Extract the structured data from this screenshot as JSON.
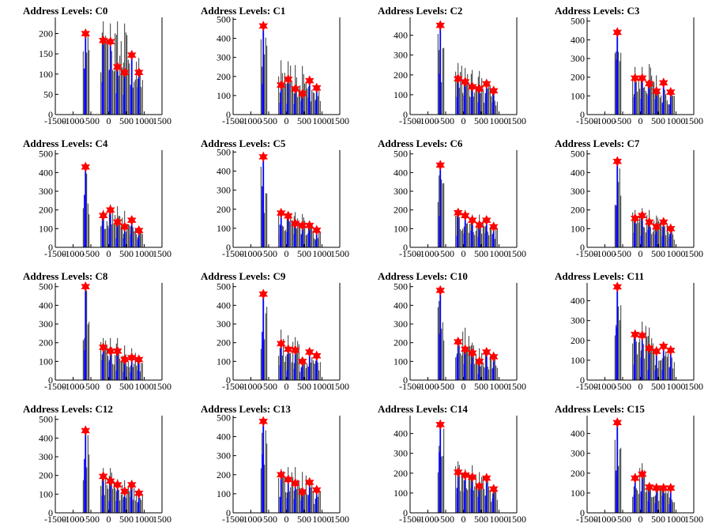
{
  "figure": {
    "layout": {
      "rows": 4,
      "cols": 4
    },
    "colors": {
      "histogram_blue": "#0000ff",
      "histogram_black": "#000000",
      "marker_red": "#ff0000",
      "frame": "#000000"
    },
    "marker_shape": "star"
  },
  "chart_data": [
    {
      "type": "bar",
      "title": "Address Levels: C0",
      "xlim": [
        -1500,
        1500
      ],
      "ylim": [
        0,
        240
      ],
      "xticks": [
        -1500,
        -1000,
        -500,
        0,
        500,
        1000,
        1500
      ],
      "yticks": [
        0,
        50,
        100,
        150,
        200
      ],
      "peaks_x": [
        -650,
        -150,
        50,
        250,
        450,
        650,
        850
      ],
      "peak_values": [
        200,
        183,
        180,
        118,
        104,
        147,
        104
      ],
      "outline_max": [
        210,
        230,
        225,
        230,
        225,
        150,
        140
      ]
    },
    {
      "type": "bar",
      "title": "Address Levels: C1",
      "xlim": [
        -1500,
        1500
      ],
      "ylim": [
        0,
        510
      ],
      "xticks": [
        -1500,
        -1000,
        -500,
        0,
        500,
        1000,
        1500
      ],
      "yticks": [
        0,
        100,
        200,
        300,
        400,
        500
      ],
      "peaks_x": [
        -650,
        -150,
        50,
        250,
        450,
        650,
        850
      ],
      "peak_values": [
        465,
        155,
        185,
        135,
        110,
        178,
        140
      ],
      "outline_max": [
        470,
        285,
        280,
        260,
        255,
        190,
        150
      ]
    },
    {
      "type": "bar",
      "title": "Address Levels: C2",
      "xlim": [
        -1500,
        1500
      ],
      "ylim": [
        0,
        490
      ],
      "xticks": [
        -1500,
        -1000,
        -500,
        0,
        500,
        1000,
        1500
      ],
      "yticks": [
        0,
        100,
        200,
        300,
        400
      ],
      "peaks_x": [
        -650,
        -150,
        50,
        250,
        450,
        650,
        850
      ],
      "peak_values": [
        450,
        180,
        165,
        140,
        130,
        155,
        120
      ],
      "outline_max": [
        455,
        260,
        235,
        225,
        220,
        170,
        130
      ]
    },
    {
      "type": "bar",
      "title": "Address Levels: C3",
      "xlim": [
        -1500,
        1500
      ],
      "ylim": [
        0,
        520
      ],
      "xticks": [
        -1500,
        -1000,
        -500,
        0,
        500,
        1000,
        1500
      ],
      "yticks": [
        0,
        100,
        200,
        300,
        400,
        500
      ],
      "peaks_x": [
        -650,
        -150,
        50,
        250,
        450,
        650,
        850
      ],
      "peak_values": [
        440,
        195,
        195,
        165,
        125,
        170,
        120
      ],
      "outline_max": [
        445,
        255,
        255,
        270,
        210,
        185,
        130
      ]
    },
    {
      "type": "bar",
      "title": "Address Levels: C4",
      "xlim": [
        -1500,
        1500
      ],
      "ylim": [
        0,
        520
      ],
      "xticks": [
        -1500,
        -1000,
        -500,
        0,
        500,
        1000,
        1500
      ],
      "yticks": [
        0,
        100,
        200,
        300,
        400,
        500
      ],
      "peaks_x": [
        -650,
        -150,
        50,
        250,
        450,
        650,
        850
      ],
      "peak_values": [
        430,
        170,
        200,
        135,
        110,
        145,
        90
      ],
      "outline_max": [
        435,
        200,
        230,
        220,
        195,
        155,
        100
      ]
    },
    {
      "type": "bar",
      "title": "Address Levels: C5",
      "xlim": [
        -1500,
        1500
      ],
      "ylim": [
        0,
        510
      ],
      "xticks": [
        -1500,
        -1000,
        -500,
        0,
        500,
        1000,
        1500
      ],
      "yticks": [
        0,
        100,
        200,
        300,
        400,
        500
      ],
      "peaks_x": [
        -650,
        -150,
        50,
        250,
        450,
        650,
        850
      ],
      "peak_values": [
        475,
        180,
        165,
        125,
        115,
        115,
        90
      ],
      "outline_max": [
        480,
        190,
        175,
        185,
        175,
        130,
        100
      ]
    },
    {
      "type": "bar",
      "title": "Address Levels: C6",
      "xlim": [
        -1500,
        1500
      ],
      "ylim": [
        0,
        520
      ],
      "xticks": [
        -1500,
        -1000,
        -500,
        0,
        500,
        1000,
        1500
      ],
      "yticks": [
        0,
        100,
        200,
        300,
        400,
        500
      ],
      "peaks_x": [
        -650,
        -150,
        50,
        250,
        450,
        650,
        850
      ],
      "peak_values": [
        440,
        185,
        170,
        145,
        120,
        145,
        110
      ],
      "outline_max": [
        445,
        200,
        200,
        175,
        175,
        155,
        120
      ]
    },
    {
      "type": "bar",
      "title": "Address Levels: C7",
      "xlim": [
        -1500,
        1500
      ],
      "ylim": [
        0,
        520
      ],
      "xticks": [
        -1500,
        -1000,
        -500,
        0,
        500,
        1000,
        1500
      ],
      "yticks": [
        0,
        100,
        200,
        300,
        400,
        500
      ],
      "peaks_x": [
        -650,
        -150,
        50,
        250,
        450,
        650,
        850
      ],
      "peak_values": [
        460,
        155,
        170,
        135,
        110,
        135,
        100
      ],
      "outline_max": [
        465,
        200,
        210,
        200,
        170,
        150,
        110
      ]
    },
    {
      "type": "bar",
      "title": "Address Levels: C8",
      "xlim": [
        -1500,
        1500
      ],
      "ylim": [
        0,
        520
      ],
      "xticks": [
        -1500,
        -1000,
        -500,
        0,
        500,
        1000,
        1500
      ],
      "yticks": [
        0,
        100,
        200,
        300,
        400,
        500
      ],
      "peaks_x": [
        -650,
        -150,
        50,
        250,
        450,
        650,
        850
      ],
      "peak_values": [
        500,
        175,
        155,
        155,
        110,
        120,
        110
      ],
      "outline_max": [
        505,
        225,
        225,
        225,
        185,
        170,
        120
      ]
    },
    {
      "type": "bar",
      "title": "Address Levels: C9",
      "xlim": [
        -1500,
        1500
      ],
      "ylim": [
        0,
        520
      ],
      "xticks": [
        -1500,
        -1000,
        -500,
        0,
        500,
        1000,
        1500
      ],
      "yticks": [
        0,
        100,
        200,
        300,
        400,
        500
      ],
      "peaks_x": [
        -650,
        -150,
        50,
        250,
        450,
        650,
        850
      ],
      "peak_values": [
        460,
        195,
        165,
        160,
        100,
        150,
        130
      ],
      "outline_max": [
        465,
        270,
        240,
        230,
        115,
        165,
        140
      ]
    },
    {
      "type": "bar",
      "title": "Address Levels: C10",
      "xlim": [
        -1500,
        1500
      ],
      "ylim": [
        0,
        520
      ],
      "xticks": [
        -1500,
        -1000,
        -500,
        0,
        500,
        1000,
        1500
      ],
      "yticks": [
        0,
        100,
        200,
        300,
        400,
        500
      ],
      "peaks_x": [
        -650,
        -150,
        50,
        250,
        450,
        650,
        850
      ],
      "peak_values": [
        480,
        205,
        165,
        145,
        100,
        150,
        125
      ],
      "outline_max": [
        485,
        225,
        280,
        200,
        170,
        160,
        135
      ]
    },
    {
      "type": "bar",
      "title": "Address Levels: C11",
      "xlim": [
        -1500,
        1500
      ],
      "ylim": [
        0,
        490
      ],
      "xticks": [
        -1500,
        -1000,
        -500,
        0,
        500,
        1000,
        1500
      ],
      "yticks": [
        0,
        100,
        200,
        300,
        400
      ],
      "peaks_x": [
        -650,
        -150,
        50,
        250,
        450,
        650,
        850
      ],
      "peak_values": [
        470,
        230,
        225,
        160,
        145,
        170,
        150
      ],
      "outline_max": [
        475,
        240,
        295,
        265,
        170,
        175,
        160
      ]
    },
    {
      "type": "bar",
      "title": "Address Levels: C12",
      "xlim": [
        -1500,
        1500
      ],
      "ylim": [
        0,
        520
      ],
      "xticks": [
        -1500,
        -1000,
        -500,
        0,
        500,
        1000,
        1500
      ],
      "yticks": [
        0,
        100,
        200,
        300,
        400,
        500
      ],
      "peaks_x": [
        -650,
        -150,
        50,
        250,
        450,
        650,
        850
      ],
      "peak_values": [
        440,
        195,
        170,
        150,
        115,
        150,
        105
      ],
      "outline_max": [
        445,
        240,
        240,
        180,
        175,
        160,
        115
      ]
    },
    {
      "type": "bar",
      "title": "Address Levels: C13",
      "xlim": [
        -1500,
        1500
      ],
      "ylim": [
        0,
        510
      ],
      "xticks": [
        -1500,
        -1000,
        -500,
        0,
        500,
        1000,
        1500
      ],
      "yticks": [
        0,
        100,
        200,
        300,
        400,
        500
      ],
      "peaks_x": [
        -650,
        -150,
        50,
        250,
        450,
        650,
        850
      ],
      "peak_values": [
        480,
        200,
        175,
        155,
        110,
        160,
        120
      ],
      "outline_max": [
        485,
        230,
        240,
        240,
        215,
        175,
        130
      ]
    },
    {
      "type": "bar",
      "title": "Address Levels: C14",
      "xlim": [
        -1500,
        1500
      ],
      "ylim": [
        0,
        490
      ],
      "xticks": [
        -1500,
        -1000,
        -500,
        0,
        500,
        1000,
        1500
      ],
      "yticks": [
        0,
        100,
        200,
        300,
        400
      ],
      "peaks_x": [
        -650,
        -150,
        50,
        250,
        450,
        650,
        850
      ],
      "peak_values": [
        445,
        205,
        190,
        180,
        135,
        175,
        120
      ],
      "outline_max": [
        450,
        260,
        220,
        240,
        205,
        180,
        130
      ]
    },
    {
      "type": "bar",
      "title": "Address Levels: C15",
      "xlim": [
        -1500,
        1500
      ],
      "ylim": [
        0,
        490
      ],
      "xticks": [
        -1500,
        -1000,
        -500,
        0,
        500,
        1000,
        1500
      ],
      "yticks": [
        0,
        100,
        200,
        300,
        400
      ],
      "peaks_x": [
        -650,
        -150,
        50,
        250,
        450,
        650,
        850
      ],
      "peak_values": [
        455,
        175,
        195,
        130,
        125,
        125,
        125
      ],
      "outline_max": [
        460,
        200,
        250,
        145,
        145,
        145,
        135
      ]
    }
  ]
}
